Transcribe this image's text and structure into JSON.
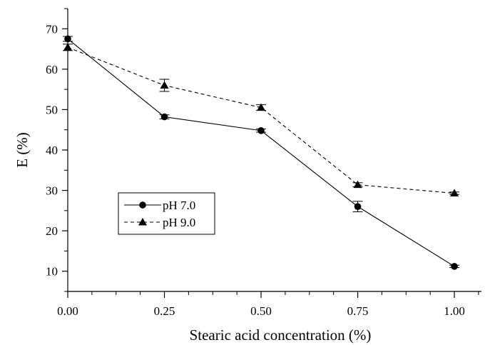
{
  "chart_data": {
    "type": "line",
    "title": "",
    "xlabel": "Stearic acid concentration (%)",
    "ylabel": "E (%)",
    "xlim": [
      0,
      1.07
    ],
    "ylim": [
      5,
      75
    ],
    "x_ticks": [
      0.0,
      0.25,
      0.5,
      0.75,
      1.0
    ],
    "x_tick_labels": [
      "0.00",
      "0.25",
      "0.50",
      "0.75",
      "1.00"
    ],
    "y_ticks": [
      10,
      20,
      30,
      40,
      50,
      60,
      70
    ],
    "y_tick_labels": [
      "10",
      "20",
      "30",
      "40",
      "50",
      "60",
      "70"
    ],
    "grid": false,
    "legend_position": "middle-left",
    "series": [
      {
        "name": "pH 7.0",
        "marker": "circle",
        "line_style": "solid",
        "color": "#000000",
        "x": [
          0.0,
          0.25,
          0.5,
          0.75,
          1.0
        ],
        "y": [
          67.5,
          48.2,
          44.8,
          26.0,
          11.2
        ],
        "error": [
          0.6,
          0.5,
          0.4,
          1.3,
          0.3
        ]
      },
      {
        "name": "pH 9.0",
        "marker": "triangle",
        "line_style": "dashed",
        "color": "#000000",
        "x": [
          0.0,
          0.25,
          0.5,
          0.75,
          1.0
        ],
        "y": [
          65.4,
          56.0,
          50.5,
          31.4,
          29.3
        ],
        "error": [
          0.8,
          1.5,
          0.7,
          0.5,
          0.3
        ]
      }
    ]
  }
}
